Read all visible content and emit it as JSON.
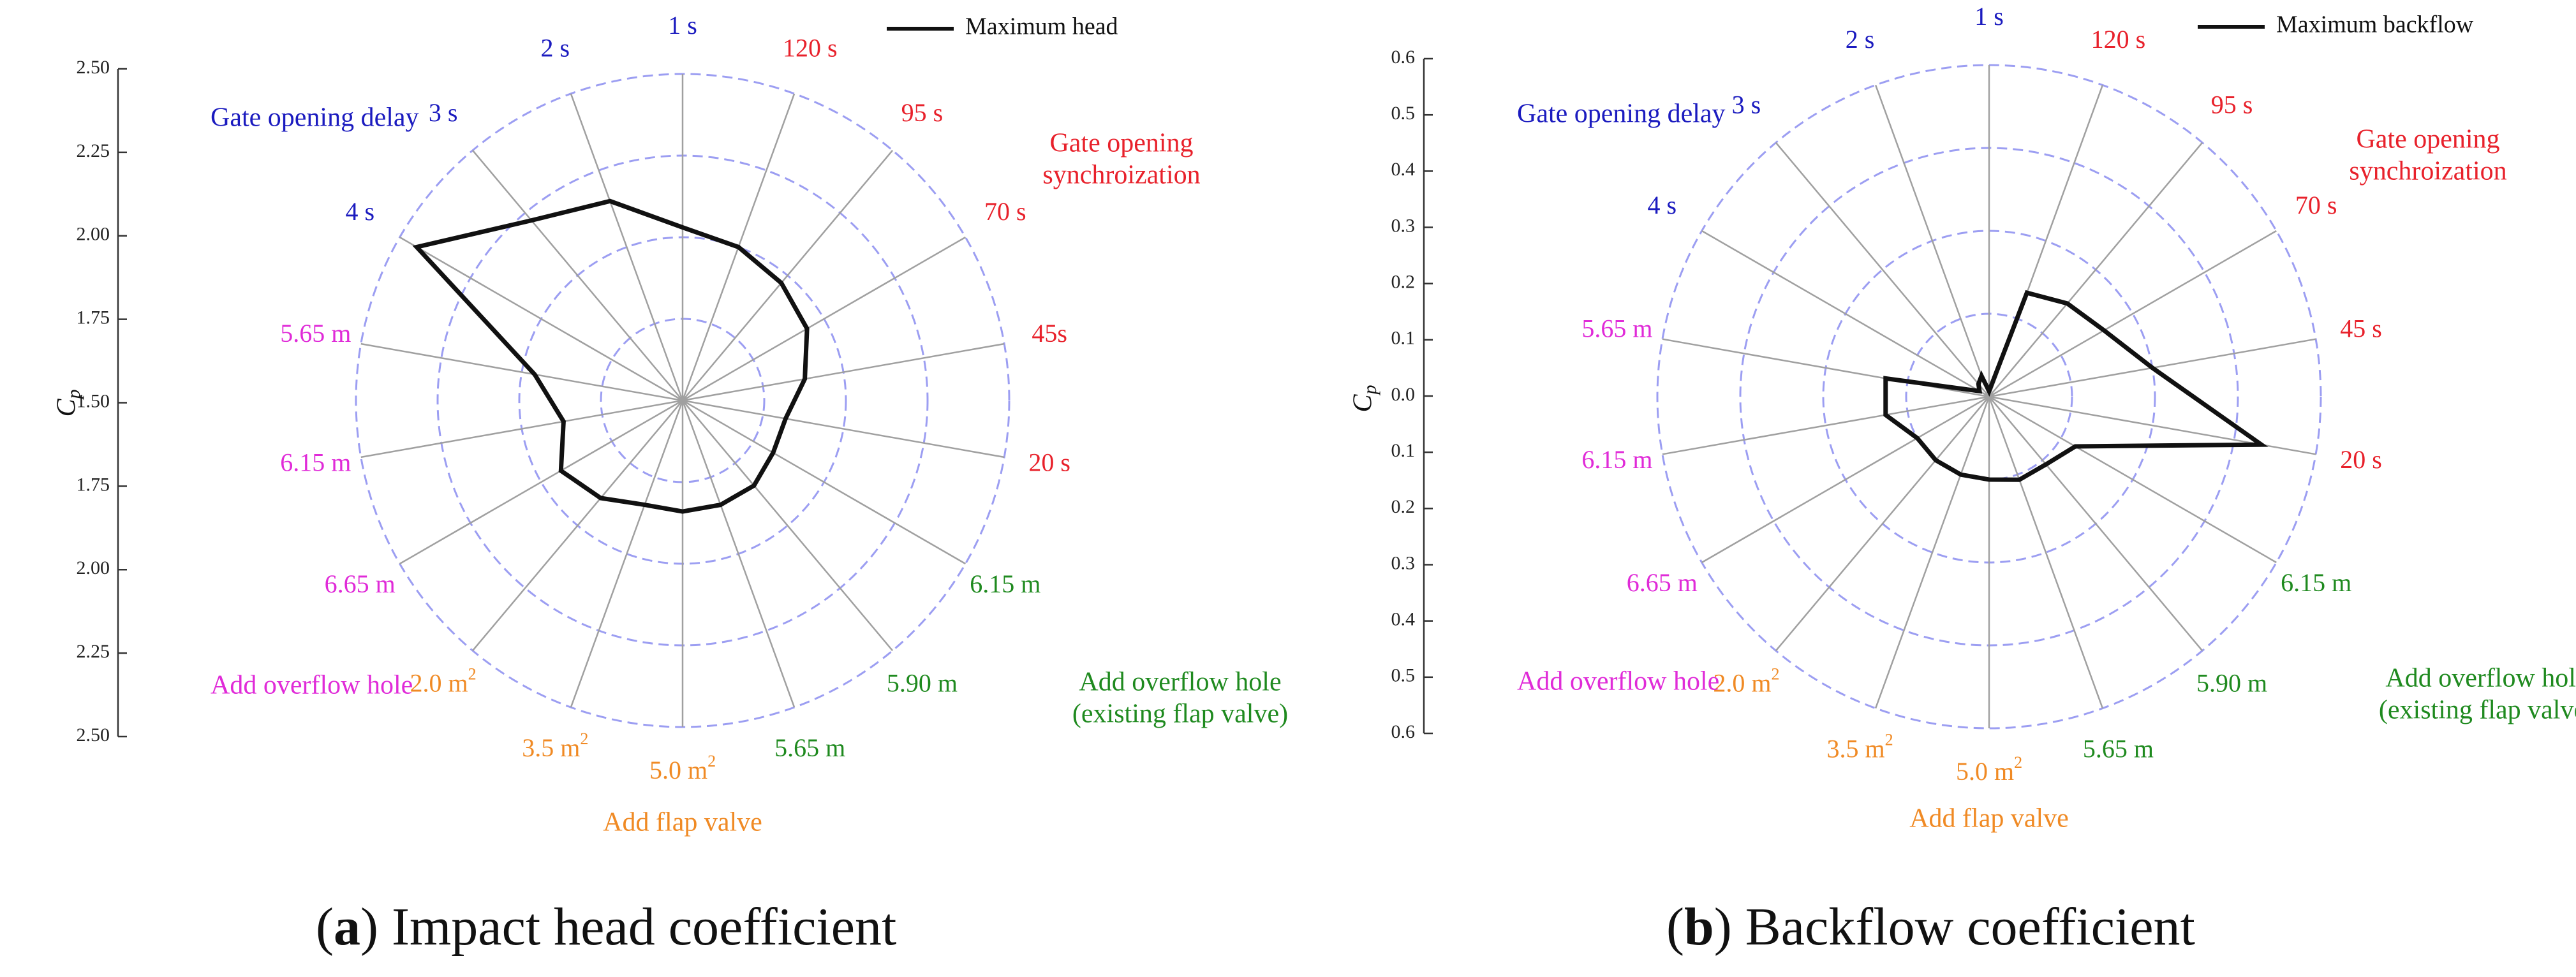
{
  "chart_data": [
    {
      "type": "radar",
      "legend": "Maximum head",
      "legend_position": "top-right",
      "caption_letter": "a",
      "caption_text": "Impact head coefficient",
      "y_axis_label": "C",
      "y_axis_label_subscript": "p",
      "y_ticks": [
        "2.50",
        "2.25",
        "2.00",
        "1.75",
        "1.50",
        "1.75",
        "2.00",
        "2.25",
        "2.50"
      ],
      "r_range": [
        1.5,
        2.5
      ],
      "categories": [
        "1 s",
        "120 s",
        "95 s",
        "70 s",
        "45s",
        "20 s",
        "6.15 m",
        "5.90 m",
        "5.65 m",
        "5.0 m²",
        "3.5 m²",
        "2.0 m²",
        "6.65 m",
        "6.15 m",
        "5.65 m",
        "4 s",
        "3 s",
        "2 s"
      ],
      "category_groups": [
        "delay",
        "sync",
        "sync",
        "sync",
        "sync",
        "sync",
        "hole_flap",
        "hole_flap",
        "hole_flap",
        "flap",
        "flap",
        "flap",
        "hole",
        "hole",
        "hole",
        "delay",
        "delay",
        "delay"
      ],
      "values": [
        2.03,
        2.0,
        1.97,
        1.94,
        1.88,
        1.82,
        1.82,
        1.84,
        1.84,
        1.84,
        1.84,
        1.89,
        1.93,
        1.87,
        1.96,
        2.44,
        2.22,
        2.15
      ],
      "group_labels": {
        "delay": [
          "Gate opening delay"
        ],
        "sync": [
          "Gate opening",
          "synchroization"
        ],
        "hole": [
          "Add overflow hole"
        ],
        "hole_flap": [
          "Add overflow hole",
          "(existing flap valve)"
        ],
        "flap": [
          "Add flap valve"
        ]
      }
    },
    {
      "type": "radar",
      "legend": "Maximum backflow",
      "legend_position": "top-right",
      "caption_letter": "b",
      "caption_text": "Backflow coefficient",
      "y_axis_label": "C",
      "y_axis_label_subscript": "p",
      "y_ticks": [
        "0.6",
        "0.5",
        "0.4",
        "0.3",
        "0.2",
        "0.1",
        "0.0",
        "0.1",
        "0.2",
        "0.3",
        "0.4",
        "0.5",
        "0.6"
      ],
      "r_range": [
        0.0,
        0.6
      ],
      "categories": [
        "1 s",
        "120 s",
        "95 s",
        "70 s",
        "45 s",
        "20 s",
        "6.15 m",
        "5.90 m",
        "5.65 m",
        "5.0 m²",
        "3.5 m²",
        "2.0 m²",
        "6.65 m",
        "6.15 m",
        "5.65 m",
        "4 s",
        "3 s",
        "2 s"
      ],
      "category_groups": [
        "delay",
        "sync",
        "sync",
        "sync",
        "sync",
        "sync",
        "hole_flap",
        "hole_flap",
        "hole_flap",
        "flap",
        "flap",
        "flap",
        "hole",
        "hole",
        "hole",
        "delay",
        "delay",
        "delay"
      ],
      "values": [
        0.01,
        0.2,
        0.22,
        0.24,
        0.3,
        0.5,
        0.18,
        0.16,
        0.16,
        0.15,
        0.15,
        0.15,
        0.15,
        0.19,
        0.19,
        0.02,
        0.03,
        0.04
      ],
      "group_labels": {
        "delay": [
          "Gate opening delay"
        ],
        "sync": [
          "Gate opening",
          "synchroization"
        ],
        "hole": [
          "Add overflow hole"
        ],
        "hole_flap": [
          "Add overflow hole",
          "(existing flap valve)"
        ],
        "flap": [
          "Add flap valve"
        ]
      }
    }
  ],
  "group_colors": {
    "delay": "#1b1bbf",
    "sync": "#e8212b",
    "hole": "#e02bd8",
    "hole_flap": "#1f8a1f",
    "flap": "#f08a24"
  }
}
